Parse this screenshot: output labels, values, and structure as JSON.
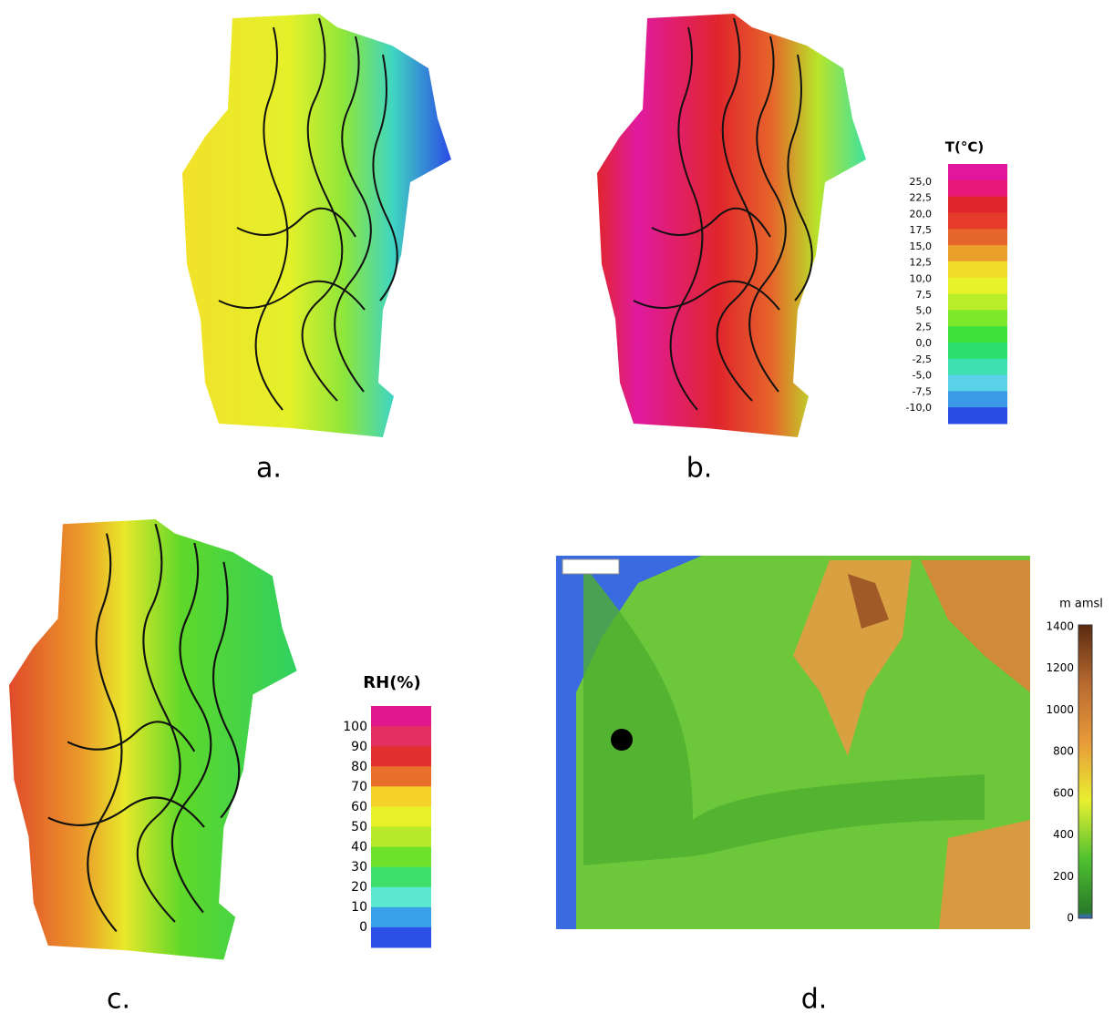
{
  "panels": [
    {
      "label": "a."
    },
    {
      "label": "b."
    },
    {
      "label": "c."
    },
    {
      "label": "d."
    }
  ],
  "legends": {
    "temperature": {
      "title": "T(°C)",
      "ticks": [
        "25,0",
        "22,5",
        "20,0",
        "17,5",
        "15,0",
        "12,5",
        "10,0",
        "7,5",
        "5,0",
        "2,5",
        "0,0",
        "-2,5",
        "-5,0",
        "-7,5",
        "-10,0"
      ],
      "colors": [
        "#e0169e",
        "#e8187a",
        "#e0252d",
        "#e63a2a",
        "#e6652a",
        "#eaa02a",
        "#f2dc2a",
        "#e8f22a",
        "#b8ee2a",
        "#7ee82a",
        "#3ee23a",
        "#2ade6e",
        "#3ee0b0",
        "#5ad2e8",
        "#3a9ae8",
        "#2a4ae6"
      ]
    },
    "humidity": {
      "title": "RH(%)",
      "ticks": [
        "100",
        "90",
        "80",
        "70",
        "60",
        "50",
        "40",
        "30",
        "20",
        "10",
        "0"
      ],
      "colors": [
        "#e01890",
        "#e23060",
        "#e23030",
        "#e8702a",
        "#f5d22a",
        "#e8f02a",
        "#b6ea2a",
        "#6ee22a",
        "#3ee06a",
        "#5ae8d0",
        "#3aa0ea",
        "#2a50e6"
      ]
    },
    "elevation": {
      "title": "m amsl",
      "ticks": [
        "1400",
        "1200",
        "1000",
        "800",
        "600",
        "400",
        "200",
        "0"
      ]
    }
  }
}
